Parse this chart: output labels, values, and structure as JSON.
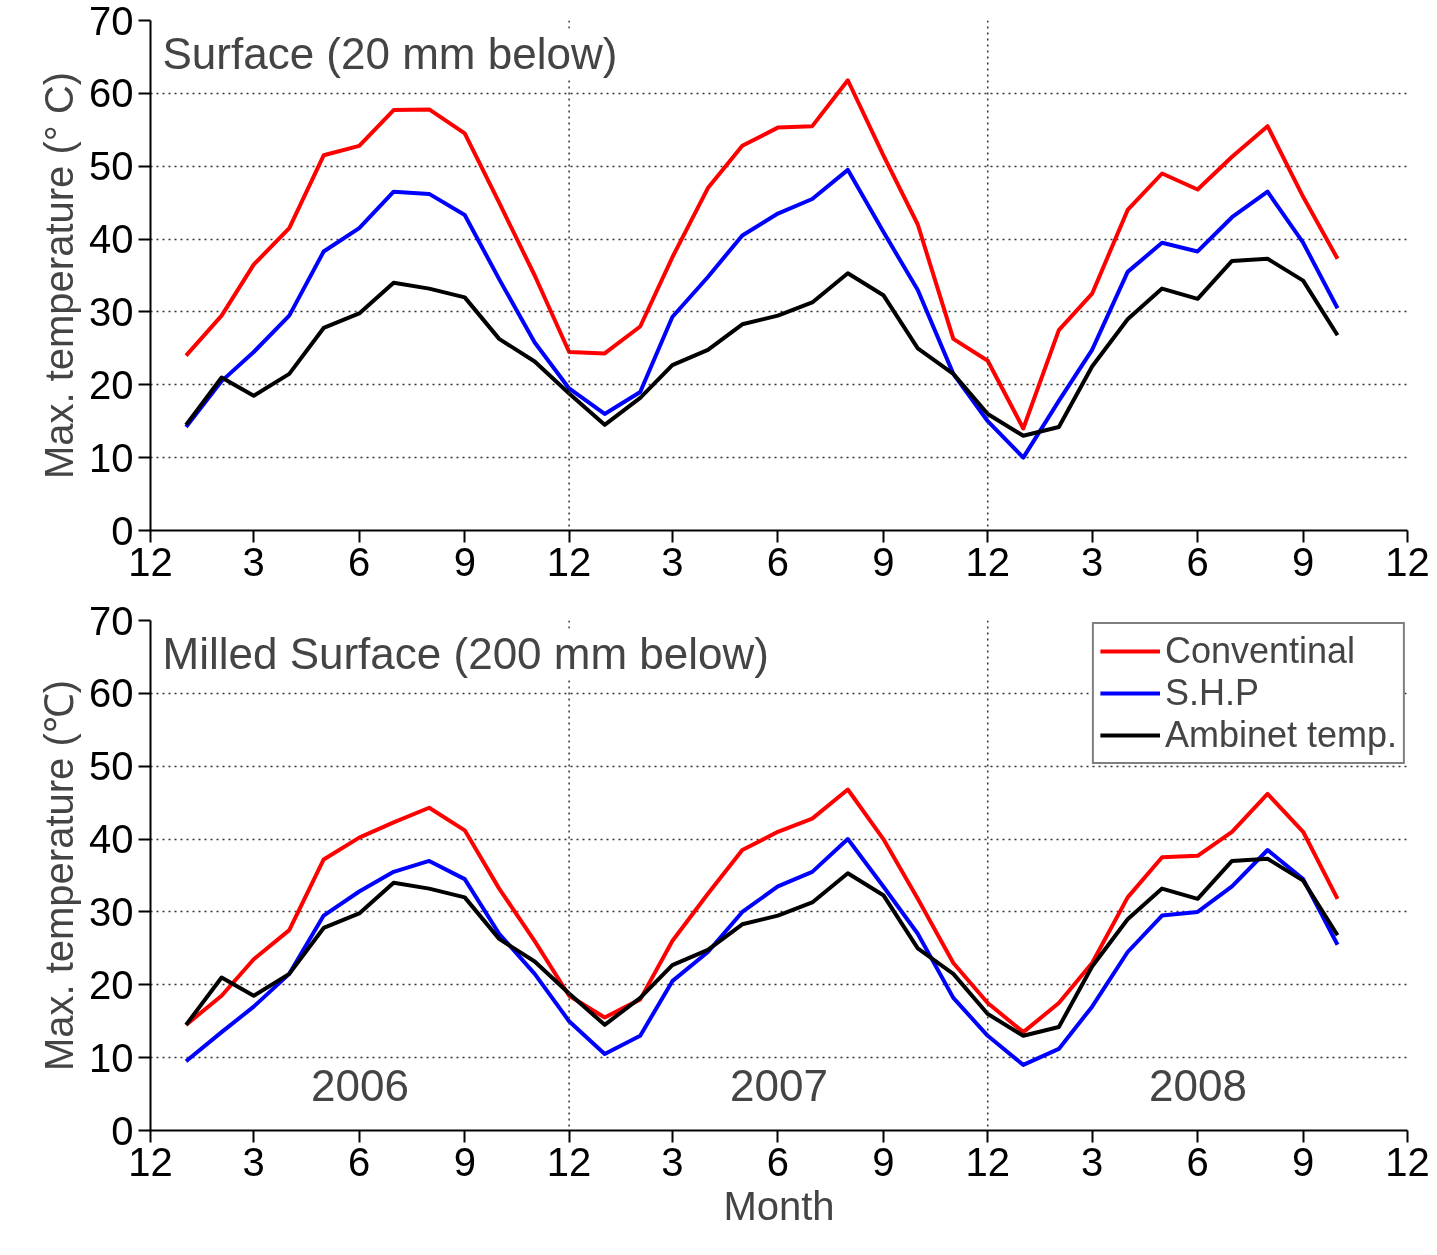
{
  "chart_data": [
    {
      "type": "line",
      "ylabel": "Max. temperature (° C)",
      "annotations": [
        "Surface (20 mm below)"
      ],
      "x": [
        "2006-01",
        "2006-02",
        "2006-03",
        "2006-04",
        "2006-05",
        "2006-06",
        "2006-07",
        "2006-08",
        "2006-09",
        "2006-10",
        "2006-11",
        "2006-12",
        "2007-01",
        "2007-02",
        "2007-03",
        "2007-04",
        "2007-05",
        "2007-06",
        "2007-07",
        "2007-08",
        "2007-09",
        "2007-10",
        "2007-11",
        "2007-12",
        "2008-01",
        "2008-02",
        "2008-03",
        "2008-04",
        "2008-05",
        "2008-06",
        "2008-07",
        "2008-08",
        "2008-09",
        "2008-10"
      ],
      "series": [
        {
          "color": "#ff0000",
          "values": [
            24,
            29.5,
            36.5,
            41.5,
            51.5,
            52.8,
            57.7,
            57.8,
            54.5,
            45,
            35,
            24.5,
            24.3,
            28,
            37.5,
            47,
            52.8,
            55.3,
            55.5,
            61.8,
            51.5,
            42,
            26.3,
            23.3,
            14,
            27.5,
            32.5,
            44,
            49,
            46.8,
            51.3,
            55.5,
            45.8,
            37.3
          ]
        },
        {
          "color": "#0000ff",
          "values": [
            14.2,
            20.5,
            24.5,
            29.5,
            38.3,
            41.5,
            46.5,
            46.2,
            43.3,
            34.5,
            25.8,
            19.5,
            16,
            19,
            29.3,
            34.8,
            40.5,
            43.5,
            45.5,
            49.5,
            41,
            33,
            21.5,
            15,
            10,
            17.8,
            24.8,
            35.5,
            39.5,
            38.3,
            43,
            46.5,
            39.5,
            30.5
          ]
        },
        {
          "color": "#000000",
          "values": [
            14.5,
            21,
            18.5,
            21.5,
            27.8,
            29.8,
            34,
            33.2,
            32,
            26.3,
            23.2,
            18.8,
            14.5,
            18.2,
            22.7,
            24.8,
            28.3,
            29.5,
            31.3,
            35.3,
            32.3,
            25,
            21.5,
            16,
            13,
            14.2,
            22.5,
            29,
            33.2,
            31.8,
            37,
            37.3,
            34.3,
            26.8
          ]
        }
      ],
      "xlim": [
        "2005-12",
        "2008-12"
      ],
      "xticks": [
        {
          "value": "2005-12",
          "label": "12"
        },
        {
          "value": "2006-03",
          "label": "3"
        },
        {
          "value": "2006-06",
          "label": "6"
        },
        {
          "value": "2006-09",
          "label": "9"
        },
        {
          "value": "2006-12",
          "label": "12"
        },
        {
          "value": "2007-03",
          "label": "3"
        },
        {
          "value": "2007-06",
          "label": "6"
        },
        {
          "value": "2007-09",
          "label": "9"
        },
        {
          "value": "2007-12",
          "label": "12"
        },
        {
          "value": "2008-03",
          "label": "3"
        },
        {
          "value": "2008-06",
          "label": "6"
        },
        {
          "value": "2008-09",
          "label": "9"
        },
        {
          "value": "2008-12",
          "label": "12"
        }
      ],
      "ylim": [
        0,
        70
      ],
      "yticks": [
        0,
        10,
        20,
        30,
        40,
        50,
        60,
        70
      ],
      "grid": "y",
      "legend": false,
      "line_style": "solid",
      "marker": "none",
      "ref_lines": [
        {
          "axis": "x",
          "value": "2006-12",
          "line_style": "dotted"
        },
        {
          "axis": "x",
          "value": "2007-12",
          "line_style": "dotted"
        }
      ]
    },
    {
      "type": "line",
      "ylabel": "Max. temperature (℃)",
      "xlabel": "Month",
      "annotations": [
        "Milled Surface (200 mm below)",
        "2006",
        "2007",
        "2008"
      ],
      "x": [
        "2006-01",
        "2006-02",
        "2006-03",
        "2006-04",
        "2006-05",
        "2006-06",
        "2006-07",
        "2006-08",
        "2006-09",
        "2006-10",
        "2006-11",
        "2006-12",
        "2007-01",
        "2007-02",
        "2007-03",
        "2007-04",
        "2007-05",
        "2007-06",
        "2007-07",
        "2007-08",
        "2007-09",
        "2007-10",
        "2007-11",
        "2007-12",
        "2008-01",
        "2008-02",
        "2008-03",
        "2008-04",
        "2008-05",
        "2008-06",
        "2008-07",
        "2008-08",
        "2008-09",
        "2008-10"
      ],
      "series": [
        {
          "name": "Conventinal",
          "color": "#ff0000",
          "values": [
            14.5,
            18.5,
            23.5,
            27.5,
            37.2,
            40.2,
            42.3,
            44.3,
            41.2,
            33.2,
            26,
            18.5,
            15.5,
            18,
            26,
            32.5,
            38.5,
            41,
            42.8,
            46.8,
            40,
            31.8,
            23,
            17.5,
            13.5,
            17.5,
            23,
            32,
            37.5,
            37.7,
            41,
            46.2,
            41,
            31.8
          ]
        },
        {
          "name": "S.H.P",
          "color": "#0000ff",
          "values": [
            9.5,
            13.5,
            17,
            21.5,
            29.5,
            32.8,
            35.5,
            37,
            34.5,
            27,
            21.5,
            15,
            10.5,
            13,
            20.5,
            24.5,
            30,
            33.5,
            35.5,
            40,
            33.5,
            27,
            18.2,
            13,
            9,
            11.2,
            17,
            24.5,
            29.5,
            30,
            33.5,
            38.5,
            34.5,
            25.5
          ]
        },
        {
          "name": "Ambinet temp.",
          "color": "#000000",
          "values": [
            14.5,
            21,
            18.5,
            21.5,
            27.8,
            29.8,
            34,
            33.2,
            32,
            26.3,
            23.2,
            18.8,
            14.5,
            18.2,
            22.7,
            24.8,
            28.3,
            29.5,
            31.3,
            35.3,
            32.3,
            25,
            21.5,
            16,
            13,
            14.2,
            22.5,
            29,
            33.2,
            31.8,
            37,
            37.3,
            34.3,
            26.8
          ]
        }
      ],
      "xlim": [
        "2005-12",
        "2008-12"
      ],
      "xticks": [
        {
          "value": "2005-12",
          "label": "12"
        },
        {
          "value": "2006-03",
          "label": "3"
        },
        {
          "value": "2006-06",
          "label": "6"
        },
        {
          "value": "2006-09",
          "label": "9"
        },
        {
          "value": "2006-12",
          "label": "12"
        },
        {
          "value": "2007-03",
          "label": "3"
        },
        {
          "value": "2007-06",
          "label": "6"
        },
        {
          "value": "2007-09",
          "label": "9"
        },
        {
          "value": "2007-12",
          "label": "12"
        },
        {
          "value": "2008-03",
          "label": "3"
        },
        {
          "value": "2008-06",
          "label": "6"
        },
        {
          "value": "2008-09",
          "label": "9"
        },
        {
          "value": "2008-12",
          "label": "12"
        }
      ],
      "ylim": [
        0,
        70
      ],
      "yticks": [
        0,
        10,
        20,
        30,
        40,
        50,
        60,
        70
      ],
      "grid": "y",
      "legend": "top right",
      "line_style": "solid",
      "marker": "none",
      "ref_lines": [
        {
          "axis": "x",
          "value": "2006-12",
          "line_style": "dotted"
        },
        {
          "axis": "x",
          "value": "2007-12",
          "line_style": "dotted"
        }
      ]
    }
  ]
}
